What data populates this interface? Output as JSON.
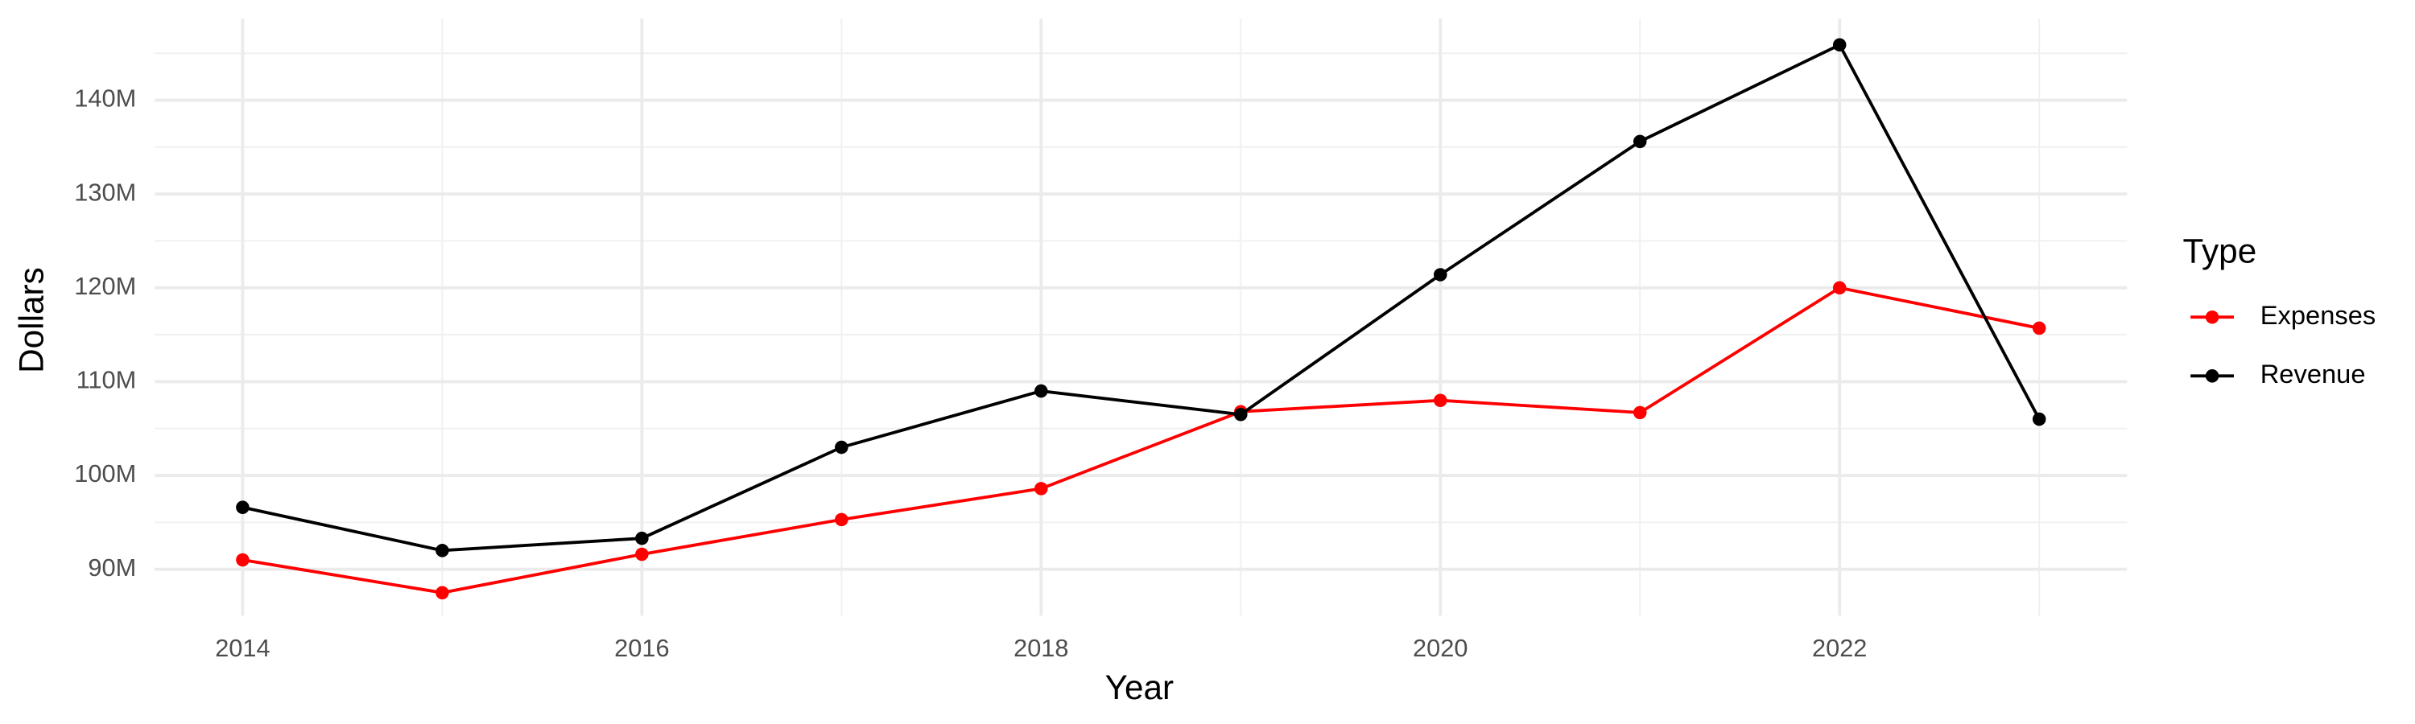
{
  "chart_data": {
    "type": "line",
    "x_label": "Year",
    "y_label": "Dollars",
    "legend_title": "Type",
    "x": [
      2014,
      2015,
      2016,
      2017,
      2018,
      2019,
      2020,
      2021,
      2022,
      2023
    ],
    "series": [
      {
        "name": "Expenses",
        "color": "#ff0000",
        "values": [
          91000000,
          87500000,
          91600000,
          95300000,
          98600000,
          106800000,
          108000000,
          106700000,
          120000000,
          115700000
        ]
      },
      {
        "name": "Revenue",
        "color": "#000000",
        "values": [
          96600000,
          92000000,
          93300000,
          103000000,
          109000000,
          106500000,
          121400000,
          135600000,
          145900000,
          106000000
        ]
      }
    ],
    "xlim": [
      2013.56,
      2023.44
    ],
    "xticks": [
      2014,
      2016,
      2018,
      2020,
      2022
    ],
    "ylim": [
      85050000,
      148700000
    ],
    "yticks": [
      {
        "value": 90000000,
        "label": "90M"
      },
      {
        "value": 100000000,
        "label": "100M"
      },
      {
        "value": 110000000,
        "label": "110M"
      },
      {
        "value": 120000000,
        "label": "120M"
      },
      {
        "value": 130000000,
        "label": "130M"
      },
      {
        "value": 140000000,
        "label": "140M"
      }
    ],
    "grid": true,
    "legend_position": "right"
  }
}
